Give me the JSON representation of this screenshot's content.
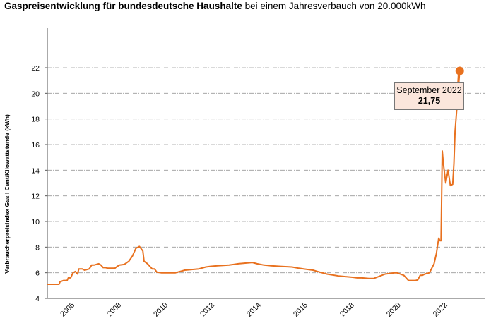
{
  "title": {
    "bold": "Gaspreisentwicklung für bundesdeutsche Haushalte",
    "rest": " bei einem Jahresverbauch von 20.000kWh"
  },
  "callout": {
    "label": "September 2022",
    "value": "21,75"
  },
  "colors": {
    "line": "#e8711f",
    "grid": "#9a9a9a",
    "callout_bg": "#fbe6dc"
  },
  "chart_data": {
    "type": "line",
    "title": "Gaspreisentwicklung für bundesdeutsche Haushalte bei einem Jahresverbauch von 20.000kWh",
    "xlabel": "",
    "ylabel": "Verbraucherpreisindex Gas I Cent/Kilowattstunde (kWh)",
    "xlim": [
      2005,
      2023.8
    ],
    "ylim": [
      4,
      22
    ],
    "yticks": [
      4,
      6,
      8,
      10,
      12,
      14,
      16,
      18,
      20,
      22
    ],
    "xticks": [
      2006,
      2008,
      2010,
      2012,
      2014,
      2016,
      2018,
      2020,
      2022
    ],
    "grid": "horizontal dash-dot",
    "series": [
      {
        "x": [
          2005.0,
          2005.5,
          2005.55,
          2005.7,
          2005.85,
          2005.9,
          2006.0,
          2006.1,
          2006.2,
          2006.3,
          2006.35,
          2006.5,
          2006.6,
          2006.8,
          2006.9,
          2007.0,
          2007.2,
          2007.3,
          2007.4,
          2007.5,
          2007.6,
          2007.9,
          2008.0,
          2008.1,
          2008.3,
          2008.5,
          2008.65,
          2008.8,
          2008.95,
          2009.1,
          2009.15,
          2009.3,
          2009.45,
          2009.5,
          2009.6,
          2009.7,
          2009.9,
          2010.0,
          2010.5,
          2010.9,
          2011.2,
          2011.5,
          2011.8,
          2012.0,
          2012.3,
          2012.8,
          2013.0,
          2013.2,
          2013.5,
          2013.8,
          2014.0,
          2014.3,
          2014.6,
          2015.0,
          2015.5,
          2015.8,
          2016.0,
          2016.4,
          2016.6,
          2017.0,
          2017.5,
          2017.8,
          2018.1,
          2018.3,
          2018.5,
          2018.8,
          2019.0,
          2019.5,
          2019.9,
          2020.0,
          2020.3,
          2020.5,
          2020.8,
          2020.9,
          2021.0,
          2021.1,
          2021.2,
          2021.4,
          2021.6,
          2021.7,
          2021.8,
          2021.85,
          2021.9,
          2021.95,
          2022.0,
          2022.1,
          2022.2,
          2022.3,
          2022.4,
          2022.45,
          2022.5,
          2022.7
        ],
        "y": [
          5.1,
          5.1,
          5.3,
          5.4,
          5.4,
          5.6,
          5.6,
          6.0,
          6.1,
          5.9,
          6.3,
          6.3,
          6.2,
          6.3,
          6.6,
          6.6,
          6.7,
          6.6,
          6.4,
          6.4,
          6.35,
          6.35,
          6.5,
          6.6,
          6.65,
          6.9,
          7.3,
          7.9,
          8.05,
          7.7,
          6.9,
          6.7,
          6.4,
          6.3,
          6.3,
          6.05,
          6.0,
          6.0,
          6.0,
          6.2,
          6.25,
          6.3,
          6.45,
          6.5,
          6.55,
          6.6,
          6.65,
          6.7,
          6.75,
          6.8,
          6.7,
          6.6,
          6.55,
          6.5,
          6.45,
          6.35,
          6.3,
          6.2,
          6.1,
          5.9,
          5.75,
          5.7,
          5.65,
          5.6,
          5.6,
          5.55,
          5.55,
          5.9,
          6.0,
          6.0,
          5.8,
          5.4,
          5.4,
          5.45,
          5.8,
          5.8,
          5.9,
          6.0,
          6.7,
          7.5,
          8.7,
          8.5,
          8.5,
          15.5,
          14.5,
          13.0,
          14.0,
          12.8,
          12.9,
          14.5,
          17.0,
          21.75
        ]
      }
    ],
    "highlight": {
      "x": 2022.7,
      "y": 21.75,
      "label": "September 2022",
      "value": "21,75"
    }
  }
}
